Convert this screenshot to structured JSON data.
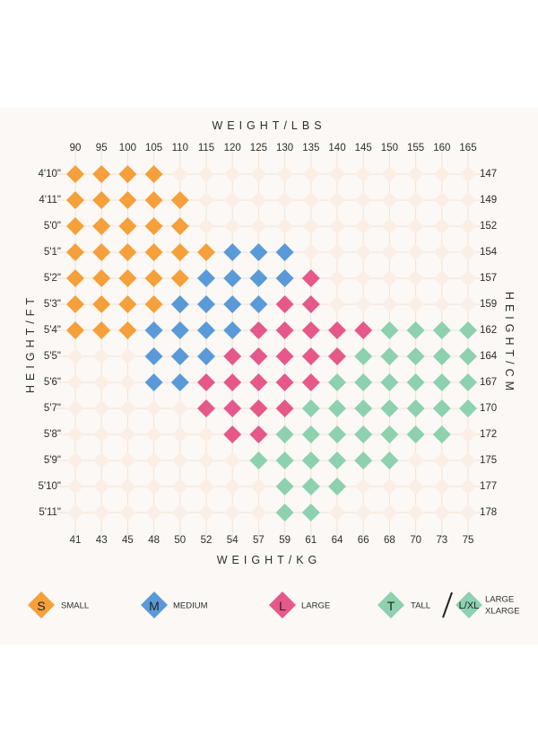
{
  "chart_data": {
    "type": "heatmap",
    "title_top": "WEIGHT/LBS",
    "title_bottom": "WEIGHT/KG",
    "title_left": "HEIGHT/FT",
    "title_right": "HEIGHT/CM",
    "weights_lbs": [
      "90",
      "95",
      "100",
      "105",
      "110",
      "115",
      "120",
      "125",
      "130",
      "135",
      "140",
      "145",
      "150",
      "155",
      "160",
      "165"
    ],
    "weights_kg": [
      "41",
      "43",
      "45",
      "48",
      "50",
      "52",
      "54",
      "57",
      "59",
      "61",
      "64",
      "66",
      "68",
      "70",
      "73",
      "75"
    ],
    "heights_ft": [
      "4'10\"",
      "4'11\"",
      "5'0\"",
      "5'1\"",
      "5'2\"",
      "5'3\"",
      "5'4\"",
      "5'5\"",
      "5'6\"",
      "5'7\"",
      "5'8\"",
      "5'9\"",
      "5'10\"",
      "5'11\""
    ],
    "heights_cm": [
      "147",
      "149",
      "152",
      "154",
      "157",
      "159",
      "162",
      "164",
      "167",
      "170",
      "172",
      "175",
      "177",
      "178"
    ],
    "grid": [
      "SSSS............",
      "SSSSS...........",
      "SSSSS...........",
      "SSSSSSMMM.......",
      "SSSSSMMMML......",
      "SSSSMMMMLL......",
      "SSSMMMMLLLLLTTTT",
      "...MMMLLLLLTTTTT",
      "...MMLLLLLTTTTTT",
      ".....LLLLTTTTTTT",
      "......LLTTTTTTT.",
      ".......TTTTTT...",
      "........TTT.....",
      "........TT......"
    ],
    "sizes": {
      "S": {
        "label": "SMALL",
        "color": "#f5a03a"
      },
      "M": {
        "label": "MEDIUM",
        "color": "#5a9ad8"
      },
      "L": {
        "label": "LARGE",
        "color": "#e6588a"
      },
      "T": {
        "label": "TALL",
        "color": "#8dd1ae"
      }
    }
  },
  "legend": {
    "items": [
      {
        "letter": "S",
        "label": "SMALL",
        "color": "#f5a03a"
      },
      {
        "letter": "M",
        "label": "MEDIUM",
        "color": "#5a9ad8"
      },
      {
        "letter": "L",
        "label": "LARGE",
        "color": "#e6588a"
      },
      {
        "letter": "T",
        "label": "TALL",
        "color": "#8dd1ae"
      }
    ],
    "separator": "/",
    "extra": {
      "letter": "L/XL",
      "label_line1": "LARGE",
      "label_line2": "XLARGE",
      "color": "#8dd1ae"
    }
  },
  "colors": {
    "empty_diamond": "#fbeee4",
    "grid_line": "#f3e2d6"
  }
}
